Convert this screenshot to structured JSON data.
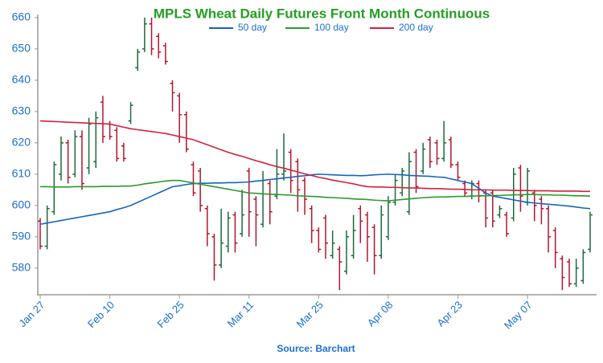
{
  "chart_data": {
    "type": "ohlc",
    "title": "MPLS Wheat Daily Futures Front Month Continuous",
    "source": "Source: Barchart",
    "categories": [
      "Jan 27",
      null,
      null,
      null,
      null,
      null,
      null,
      null,
      null,
      null,
      "Feb 10",
      null,
      null,
      null,
      null,
      null,
      null,
      null,
      null,
      null,
      "Feb 25",
      null,
      null,
      null,
      null,
      null,
      null,
      null,
      null,
      null,
      "Mar 11",
      null,
      null,
      null,
      null,
      null,
      null,
      null,
      null,
      null,
      "Mar 25",
      null,
      null,
      null,
      null,
      null,
      null,
      null,
      null,
      null,
      "Apr 08",
      null,
      null,
      null,
      null,
      null,
      null,
      null,
      null,
      null,
      "Apr 23",
      null,
      null,
      null,
      null,
      null,
      null,
      null,
      null,
      null,
      "May 07",
      null,
      null,
      null,
      null,
      null,
      null,
      null,
      null,
      null
    ],
    "ylim": [
      571.5,
      661
    ],
    "yticks": [
      580,
      590,
      600,
      610,
      620,
      630,
      640,
      650,
      660
    ],
    "up_color": "#1b6b3a",
    "down_color": "#b3162c",
    "ohlc": {
      "open": [
        595,
        587,
        598,
        610,
        620,
        610,
        622,
        612,
        614,
        633,
        626,
        624,
        619,
        627,
        644,
        650,
        658,
        654,
        651,
        639,
        635,
        629,
        613,
        611,
        599,
        590,
        581,
        587,
        597,
        591,
        611,
        602,
        594,
        607,
        603,
        610,
        617,
        614,
        608,
        599,
        592,
        596,
        584,
        586,
        579,
        584,
        599,
        597,
        593,
        584,
        590,
        601,
        604,
        598,
        617,
        611,
        621,
        620,
        615,
        621,
        613,
        607,
        603,
        607,
        604,
        604,
        597,
        597,
        596,
        612,
        601,
        604,
        602,
        599,
        592,
        583,
        582,
        575,
        576,
        586
      ],
      "high": [
        596,
        600,
        614,
        622,
        621,
        624,
        624,
        628,
        630,
        635,
        627,
        625,
        620,
        633,
        650,
        660,
        660,
        655,
        652,
        640,
        636,
        630,
        614,
        612,
        600,
        591,
        599,
        598,
        598,
        605,
        612,
        603,
        611,
        608,
        618,
        623,
        618,
        615,
        609,
        600,
        593,
        597,
        592,
        587,
        592,
        597,
        600,
        598,
        594,
        600,
        603,
        610,
        612,
        617,
        618,
        620,
        622,
        621,
        627,
        622,
        614,
        608,
        608,
        608,
        605,
        605,
        600,
        598,
        612,
        613,
        612,
        605,
        603,
        600,
        593,
        584,
        583,
        583,
        586,
        598
      ],
      "low": [
        586,
        586,
        597,
        608,
        607,
        609,
        605,
        610,
        612,
        620,
        621,
        614,
        614,
        626,
        643,
        649,
        648,
        647,
        645,
        630,
        620,
        617,
        603,
        598,
        587,
        576,
        580,
        585,
        585,
        590,
        590,
        587,
        593,
        594,
        602,
        608,
        604,
        598,
        597,
        588,
        585,
        583,
        583,
        573,
        578,
        583,
        588,
        582,
        578,
        583,
        589,
        600,
        603,
        597,
        604,
        610,
        612,
        613,
        614,
        612,
        608,
        603,
        602,
        601,
        593,
        593,
        596,
        590,
        595,
        598,
        600,
        595,
        594,
        585,
        580,
        573,
        574,
        574,
        575,
        585
      ],
      "close": [
        587,
        599,
        613,
        620,
        609,
        622,
        607,
        626,
        628,
        622,
        622,
        615,
        615,
        632,
        649,
        658,
        650,
        649,
        646,
        636,
        629,
        618,
        604,
        600,
        591,
        581,
        588,
        596,
        588,
        597,
        598,
        597,
        608,
        598,
        610,
        611,
        608,
        605,
        602,
        592,
        586,
        588,
        588,
        582,
        590,
        592,
        595,
        590,
        584,
        597,
        601,
        608,
        611,
        614,
        606,
        618,
        614,
        615,
        620,
        613,
        609,
        604,
        607,
        603,
        596,
        595,
        599,
        591,
        610,
        603,
        611,
        600,
        599,
        590,
        585,
        577,
        575,
        580,
        585,
        597
      ]
    },
    "series": [
      {
        "name": "50 day",
        "color": "#1565c0",
        "values": [
          594,
          594.4,
          594.8,
          595.2,
          595.6,
          596,
          596.4,
          596.8,
          597.2,
          597.6,
          598,
          598.7,
          599.3,
          600,
          601,
          602,
          603,
          604,
          605,
          606,
          606.3,
          606.7,
          607,
          607.1,
          607.1,
          607.2,
          607.2,
          607.3,
          607.3,
          607.4,
          607.5,
          607.8,
          608,
          608.3,
          608.5,
          608.8,
          609,
          609.3,
          609.5,
          609.8,
          610,
          609.9,
          609.8,
          609.7,
          609.6,
          609.6,
          609.5,
          609.6,
          609.8,
          609.9,
          610,
          609.9,
          609.8,
          609.6,
          609.5,
          609.4,
          609.3,
          609.1,
          609,
          608.5,
          608,
          607.5,
          607,
          605.5,
          604,
          603,
          602.6,
          602.2,
          601.8,
          601.4,
          601,
          600.8,
          600.6,
          600.4,
          600.2,
          600,
          599.8,
          599.5,
          599.2,
          599
        ]
      },
      {
        "name": "100 day",
        "color": "#2e9a2e",
        "values": [
          606,
          606,
          605.9,
          605.9,
          605.9,
          606,
          606,
          606,
          606,
          606.1,
          606.1,
          606.1,
          606.2,
          606.2,
          606.5,
          606.9,
          607.2,
          607.5,
          607.8,
          608,
          608,
          607.6,
          607.2,
          606.8,
          606.4,
          606,
          605.6,
          605.2,
          604.8,
          604.4,
          604,
          603.9,
          603.7,
          603.6,
          603.5,
          603.4,
          603.3,
          603.1,
          603,
          602.9,
          602.8,
          602.6,
          602.5,
          602.4,
          602.3,
          602.1,
          602,
          601.9,
          601.7,
          601.6,
          601.5,
          601.7,
          601.9,
          602.1,
          602.3,
          602.5,
          602.6,
          602.7,
          602.7,
          602.8,
          602.9,
          602.9,
          603,
          603.1,
          603.1,
          603.2,
          603.2,
          603.3,
          603.4,
          603.4,
          603.5,
          603.5,
          603.4,
          603.4,
          603.3,
          603.3,
          603.2,
          603.1,
          603.1,
          603
        ]
      },
      {
        "name": "200 day",
        "color": "#d0243c",
        "values": [
          627,
          626.9,
          626.8,
          626.7,
          626.6,
          626.5,
          626.4,
          626.3,
          626.2,
          626.1,
          626,
          625.5,
          625,
          624.5,
          624.2,
          623.9,
          623.6,
          623.3,
          623,
          622.5,
          622,
          621.5,
          621,
          620.2,
          619.4,
          618.6,
          617.8,
          617,
          616.3,
          615.7,
          615,
          614.3,
          613.7,
          613,
          612.4,
          611.9,
          611.3,
          610.7,
          610.1,
          609.6,
          609,
          608.6,
          608.1,
          607.7,
          607.3,
          606.9,
          606.4,
          606,
          605.9,
          605.9,
          605.8,
          605.8,
          605.7,
          605.6,
          605.6,
          605.5,
          605.4,
          605.4,
          605.3,
          605.2,
          605.2,
          605.1,
          605,
          605,
          605,
          604.9,
          604.9,
          604.9,
          604.8,
          604.8,
          604.8,
          604.7,
          604.7,
          604.7,
          604.6,
          604.6,
          604.6,
          604.6,
          604.5,
          604.5
        ]
      }
    ]
  }
}
